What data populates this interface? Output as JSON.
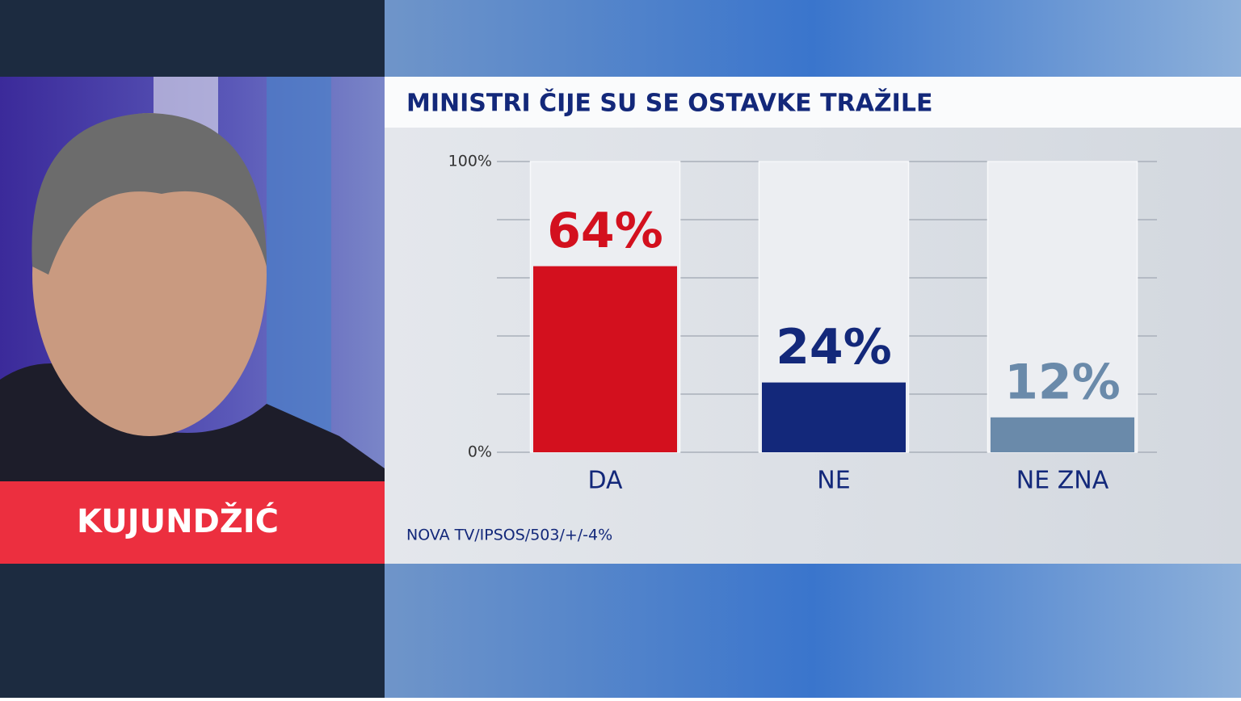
{
  "person_name": "KUJUNDŽIĆ",
  "chart_data": {
    "type": "bar",
    "title": "MINISTRI ČIJE SU SE OSTAVKE TRAŽILE",
    "categories": [
      "DA",
      "NE",
      "NE ZNA"
    ],
    "values": [
      64,
      24,
      12
    ],
    "value_labels": [
      "64%",
      "24%",
      "12%"
    ],
    "colors": [
      "#d3101e",
      "#13287a",
      "#6a8aaa"
    ],
    "ylim": [
      0,
      100
    ],
    "yticks": [
      {
        "value": 0,
        "label": "0%"
      },
      {
        "value": 20,
        "label": null
      },
      {
        "value": 40,
        "label": null
      },
      {
        "value": 60,
        "label": null
      },
      {
        "value": 80,
        "label": null
      },
      {
        "value": 100,
        "label": "100%"
      }
    ],
    "grid": true,
    "source": "NOVA TV/IPSOS/503/+/-4%"
  }
}
